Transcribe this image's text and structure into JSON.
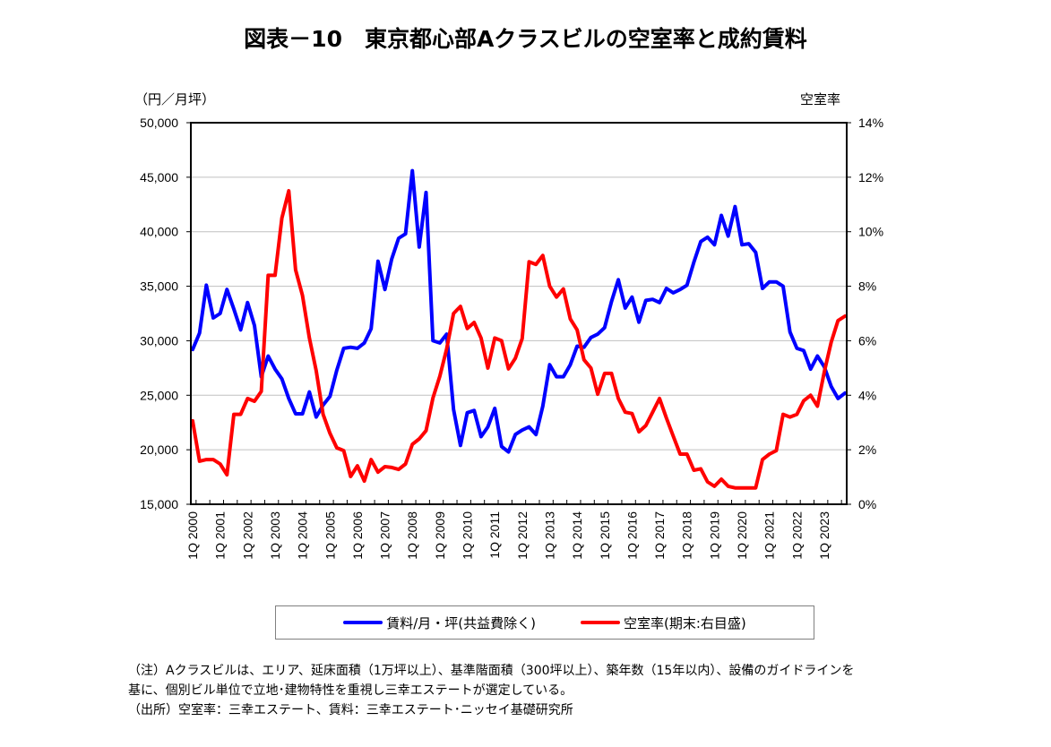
{
  "chart_data": {
    "type": "line",
    "title": "図表－10　東京都心部Aクラスビルの空室率と成約賃料",
    "ylabel_left": "（円／月坪）",
    "ylabel_right": "空室率",
    "ylim_left": [
      15000,
      50000
    ],
    "ylim_right": [
      0,
      14
    ],
    "yticks_left": [
      "15,000",
      "20,000",
      "25,000",
      "30,000",
      "35,000",
      "40,000",
      "45,000",
      "50,000"
    ],
    "yticks_right": [
      "0%",
      "2%",
      "4%",
      "6%",
      "8%",
      "10%",
      "12%",
      "14%"
    ],
    "xticks": [
      "1Q 2000",
      "1Q 2001",
      "1Q 2002",
      "1Q 2003",
      "1Q 2004",
      "1Q 2005",
      "1Q 2006",
      "1Q 2007",
      "1Q 2008",
      "1Q 2009",
      "1Q 2010",
      "1Q 2011",
      "1Q 2012",
      "1Q 2013",
      "1Q 2014",
      "1Q 2015",
      "1Q 2016",
      "1Q 2017",
      "1Q 2018",
      "1Q 2019",
      "1Q 2020",
      "1Q 2021",
      "1Q 2022",
      "1Q 2023"
    ],
    "x_range": [
      "1Q 2000",
      "4Q 2023"
    ],
    "grid": true,
    "legend_placement": "bottom",
    "series": [
      {
        "name": "賃料/月・坪(共益費除く)",
        "axis": "left",
        "color": "#0000ff",
        "values": [
          29200,
          30700,
          35100,
          32100,
          32500,
          34700,
          32900,
          31000,
          33500,
          31400,
          26700,
          28600,
          27400,
          26500,
          24700,
          23300,
          23300,
          25300,
          23000,
          24100,
          24900,
          27300,
          29300,
          29400,
          29300,
          29800,
          31100,
          37300,
          34700,
          37500,
          39400,
          39800,
          45600,
          38600,
          43600,
          30000,
          29800,
          30600,
          23700,
          20400,
          23400,
          23600,
          21200,
          22100,
          23800,
          20300,
          19800,
          21400,
          21800,
          22100,
          21400,
          24000,
          27800,
          26700,
          26700,
          27800,
          29500,
          29400,
          30300,
          30600,
          31200,
          33600,
          35600,
          33000,
          34000,
          31700,
          33700,
          33800,
          33500,
          34800,
          34400,
          34700,
          35100,
          37200,
          39100,
          39500,
          38800,
          41500,
          39600,
          42300,
          38800,
          38900,
          38100,
          34800,
          35400,
          35400,
          35000,
          30800,
          29300,
          29100,
          27400,
          28600,
          27600,
          25800,
          24700,
          25200
        ]
      },
      {
        "name": "空室率(期末:右目盛)",
        "axis": "right",
        "color": "#ff0000",
        "values": [
          3.06,
          1.58,
          1.64,
          1.64,
          1.48,
          1.08,
          3.3,
          3.3,
          3.88,
          3.78,
          4.14,
          8.4,
          8.4,
          10.5,
          11.5,
          8.6,
          7.66,
          6.1,
          4.9,
          3.3,
          2.6,
          2.07,
          1.97,
          1.02,
          1.41,
          0.85,
          1.64,
          1.18,
          1.38,
          1.35,
          1.28,
          1.48,
          2.2,
          2.4,
          2.7,
          3.9,
          4.7,
          5.7,
          7.0,
          7.26,
          6.45,
          6.67,
          6.1,
          5.0,
          6.1,
          6.0,
          4.97,
          5.36,
          6.08,
          8.9,
          8.8,
          9.13,
          8.0,
          7.6,
          7.9,
          6.8,
          6.4,
          5.3,
          5.0,
          4.04,
          4.8,
          4.8,
          3.88,
          3.38,
          3.33,
          2.66,
          2.89,
          3.38,
          3.88,
          3.16,
          2.5,
          1.84,
          1.84,
          1.25,
          1.3,
          0.82,
          0.66,
          0.92,
          0.66,
          0.6,
          0.6,
          0.6,
          0.6,
          1.64,
          1.84,
          1.97,
          3.3,
          3.2,
          3.3,
          3.8,
          4.0,
          3.6,
          4.86,
          5.95,
          6.74,
          6.9
        ]
      }
    ]
  },
  "notes": [
    "（注）Aクラスビルは、エリア、延床面積（1万坪以上）、基準階面積（300坪以上）、築年数（15年以内）、設備のガイドラインを",
    "基に、個別ビル単位で立地･建物特性を重視し三幸エステートが選定している。",
    "（出所）空室率：三幸エステート、賃料：三幸エステート･ニッセイ基礎研究所"
  ]
}
